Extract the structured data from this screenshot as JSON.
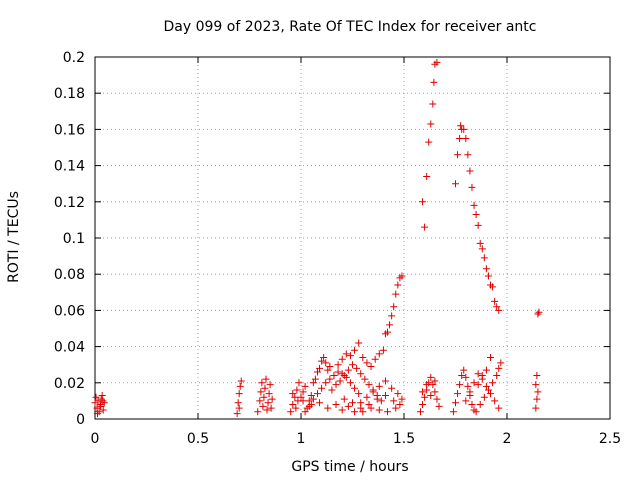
{
  "chart_data": {
    "type": "scatter",
    "title": "Day 099 of 2023, Rate Of TEC Index for receiver antc",
    "xlabel": "GPS time / hours",
    "ylabel": "ROTI / TECUs",
    "xlim": [
      0,
      2.5
    ],
    "ylim": [
      0,
      0.2
    ],
    "x_ticks": [
      0,
      0.5,
      1,
      1.5,
      2,
      2.5
    ],
    "x_tick_labels": [
      "0",
      "0.5",
      "1",
      "1.5",
      "2",
      "2.5"
    ],
    "y_ticks": [
      0,
      0.02,
      0.04,
      0.06,
      0.08,
      0.1,
      0.12,
      0.14,
      0.16,
      0.18,
      0.2
    ],
    "y_tick_labels": [
      "0",
      "0.02",
      "0.04",
      "0.06",
      "0.08",
      "0.1",
      "0.12",
      "0.14",
      "0.16",
      "0.18",
      "0.2"
    ],
    "grid": true,
    "marker": "plus",
    "marker_color": "#e00000",
    "series": [
      {
        "points": [
          [
            0.0,
            0.009
          ],
          [
            0.005,
            0.012
          ],
          [
            0.01,
            0.006
          ],
          [
            0.015,
            0.01
          ],
          [
            0.02,
            0.004
          ],
          [
            0.025,
            0.008
          ],
          [
            0.03,
            0.011
          ],
          [
            0.035,
            0.013
          ],
          [
            0.04,
            0.005
          ],
          [
            0.045,
            0.009
          ],
          [
            0.012,
            0.003
          ],
          [
            0.028,
            0.007
          ],
          [
            0.038,
            0.01
          ],
          [
            0.69,
            0.003
          ],
          [
            0.695,
            0.009
          ],
          [
            0.7,
            0.014
          ],
          [
            0.705,
            0.018
          ],
          [
            0.71,
            0.021
          ],
          [
            0.7,
            0.006
          ],
          [
            0.79,
            0.004
          ],
          [
            0.8,
            0.01
          ],
          [
            0.805,
            0.015
          ],
          [
            0.81,
            0.02
          ],
          [
            0.815,
            0.007
          ],
          [
            0.82,
            0.012
          ],
          [
            0.825,
            0.017
          ],
          [
            0.83,
            0.022
          ],
          [
            0.835,
            0.005
          ],
          [
            0.84,
            0.009
          ],
          [
            0.845,
            0.014
          ],
          [
            0.85,
            0.019
          ],
          [
            0.855,
            0.006
          ],
          [
            0.86,
            0.011
          ],
          [
            0.95,
            0.004
          ],
          [
            0.96,
            0.008
          ],
          [
            0.97,
            0.012
          ],
          [
            0.98,
            0.016
          ],
          [
            0.99,
            0.02
          ],
          [
            0.96,
            0.014
          ],
          [
            0.975,
            0.006
          ],
          [
            0.985,
            0.01
          ],
          [
            1.0,
            0.012
          ],
          [
            1.01,
            0.015
          ],
          [
            1.02,
            0.018
          ],
          [
            1.03,
            0.006
          ],
          [
            1.04,
            0.01
          ],
          [
            1.05,
            0.008
          ],
          [
            1.06,
            0.02
          ],
          [
            1.07,
            0.022
          ],
          [
            1.08,
            0.026
          ],
          [
            1.09,
            0.028
          ],
          [
            1.1,
            0.032
          ],
          [
            1.11,
            0.034
          ],
          [
            1.12,
            0.031
          ],
          [
            1.13,
            0.027
          ],
          [
            1.14,
            0.029
          ],
          [
            1.02,
            0.004
          ],
          [
            1.04,
            0.007
          ],
          [
            1.06,
            0.011
          ],
          [
            1.08,
            0.014
          ],
          [
            1.1,
            0.017
          ],
          [
            1.12,
            0.02
          ],
          [
            1.14,
            0.022
          ],
          [
            1.16,
            0.024
          ],
          [
            1.18,
            0.026
          ],
          [
            1.2,
            0.025
          ],
          [
            1.22,
            0.023
          ],
          [
            1.24,
            0.02
          ],
          [
            1.26,
            0.017
          ],
          [
            1.28,
            0.014
          ],
          [
            1.01,
            0.01
          ],
          [
            1.05,
            0.013
          ],
          [
            1.09,
            0.009
          ],
          [
            1.13,
            0.006
          ],
          [
            1.17,
            0.008
          ],
          [
            1.21,
            0.011
          ],
          [
            1.25,
            0.009
          ],
          [
            1.29,
            0.006
          ],
          [
            1.33,
            0.008
          ],
          [
            1.37,
            0.011
          ],
          [
            1.41,
            0.013
          ],
          [
            1.45,
            0.01
          ],
          [
            1.15,
            0.016
          ],
          [
            1.17,
            0.019
          ],
          [
            1.19,
            0.021
          ],
          [
            1.21,
            0.024
          ],
          [
            1.23,
            0.027
          ],
          [
            1.25,
            0.03
          ],
          [
            1.27,
            0.028
          ],
          [
            1.29,
            0.025
          ],
          [
            1.31,
            0.022
          ],
          [
            1.33,
            0.019
          ],
          [
            1.35,
            0.016
          ],
          [
            1.37,
            0.013
          ],
          [
            1.39,
            0.01
          ],
          [
            1.18,
            0.03
          ],
          [
            1.2,
            0.033
          ],
          [
            1.22,
            0.036
          ],
          [
            1.24,
            0.035
          ],
          [
            1.26,
            0.038
          ],
          [
            1.28,
            0.042
          ],
          [
            1.3,
            0.034
          ],
          [
            1.32,
            0.031
          ],
          [
            1.34,
            0.029
          ],
          [
            1.36,
            0.033
          ],
          [
            1.38,
            0.036
          ],
          [
            1.4,
            0.038
          ],
          [
            1.2,
            0.005
          ],
          [
            1.23,
            0.007
          ],
          [
            1.26,
            0.004
          ],
          [
            1.29,
            0.009
          ],
          [
            1.32,
            0.012
          ],
          [
            1.35,
            0.015
          ],
          [
            1.38,
            0.018
          ],
          [
            1.41,
            0.021
          ],
          [
            1.44,
            0.017
          ],
          [
            1.47,
            0.014
          ],
          [
            1.49,
            0.011
          ],
          [
            1.3,
            0.004
          ],
          [
            1.34,
            0.006
          ],
          [
            1.38,
            0.005
          ],
          [
            1.42,
            0.004
          ],
          [
            1.46,
            0.006
          ],
          [
            1.48,
            0.008
          ],
          [
            1.41,
            0.047
          ],
          [
            1.42,
            0.048
          ],
          [
            1.43,
            0.052
          ],
          [
            1.44,
            0.057
          ],
          [
            1.45,
            0.062
          ],
          [
            1.46,
            0.069
          ],
          [
            1.47,
            0.074
          ],
          [
            1.48,
            0.078
          ],
          [
            1.49,
            0.079
          ],
          [
            1.58,
            0.004
          ],
          [
            1.59,
            0.008
          ],
          [
            1.6,
            0.012
          ],
          [
            1.61,
            0.016
          ],
          [
            1.62,
            0.02
          ],
          [
            1.63,
            0.023
          ],
          [
            1.64,
            0.019
          ],
          [
            1.65,
            0.015
          ],
          [
            1.66,
            0.011
          ],
          [
            1.67,
            0.007
          ],
          [
            1.59,
            0.015
          ],
          [
            1.61,
            0.019
          ],
          [
            1.63,
            0.013
          ],
          [
            1.65,
            0.021
          ],
          [
            1.59,
            0.12
          ],
          [
            1.6,
            0.106
          ],
          [
            1.61,
            0.134
          ],
          [
            1.62,
            0.153
          ],
          [
            1.63,
            0.163
          ],
          [
            1.64,
            0.174
          ],
          [
            1.645,
            0.186
          ],
          [
            1.65,
            0.196
          ],
          [
            1.66,
            0.197
          ],
          [
            1.74,
            0.004
          ],
          [
            1.75,
            0.009
          ],
          [
            1.76,
            0.014
          ],
          [
            1.77,
            0.019
          ],
          [
            1.78,
            0.024
          ],
          [
            1.79,
            0.027
          ],
          [
            1.8,
            0.023
          ],
          [
            1.81,
            0.018
          ],
          [
            1.82,
            0.013
          ],
          [
            1.83,
            0.008
          ],
          [
            1.84,
            0.005
          ],
          [
            1.8,
            0.01
          ],
          [
            1.82,
            0.015
          ],
          [
            1.84,
            0.02
          ],
          [
            1.86,
            0.025
          ],
          [
            1.88,
            0.022
          ],
          [
            1.9,
            0.018
          ],
          [
            1.92,
            0.014
          ],
          [
            1.94,
            0.01
          ],
          [
            1.96,
            0.006
          ],
          [
            1.85,
            0.004
          ],
          [
            1.87,
            0.008
          ],
          [
            1.89,
            0.012
          ],
          [
            1.91,
            0.016
          ],
          [
            1.93,
            0.02
          ],
          [
            1.95,
            0.024
          ],
          [
            1.96,
            0.028
          ],
          [
            1.97,
            0.031
          ],
          [
            1.92,
            0.034
          ],
          [
            1.9,
            0.027
          ],
          [
            1.88,
            0.024
          ],
          [
            1.86,
            0.019
          ],
          [
            1.75,
            0.13
          ],
          [
            1.76,
            0.146
          ],
          [
            1.77,
            0.155
          ],
          [
            1.775,
            0.162
          ],
          [
            1.78,
            0.16
          ],
          [
            1.79,
            0.16
          ],
          [
            1.8,
            0.155
          ],
          [
            1.81,
            0.146
          ],
          [
            1.82,
            0.137
          ],
          [
            1.83,
            0.128
          ],
          [
            1.84,
            0.118
          ],
          [
            1.85,
            0.113
          ],
          [
            1.86,
            0.107
          ],
          [
            1.87,
            0.097
          ],
          [
            1.88,
            0.094
          ],
          [
            1.89,
            0.089
          ],
          [
            1.9,
            0.083
          ],
          [
            1.91,
            0.079
          ],
          [
            1.92,
            0.074
          ],
          [
            1.93,
            0.073
          ],
          [
            1.94,
            0.065
          ],
          [
            1.95,
            0.062
          ],
          [
            1.96,
            0.06
          ],
          [
            2.14,
            0.006
          ],
          [
            2.145,
            0.011
          ],
          [
            2.15,
            0.015
          ],
          [
            2.14,
            0.019
          ],
          [
            2.145,
            0.024
          ],
          [
            2.15,
            0.058
          ],
          [
            2.155,
            0.059
          ]
        ]
      }
    ]
  }
}
